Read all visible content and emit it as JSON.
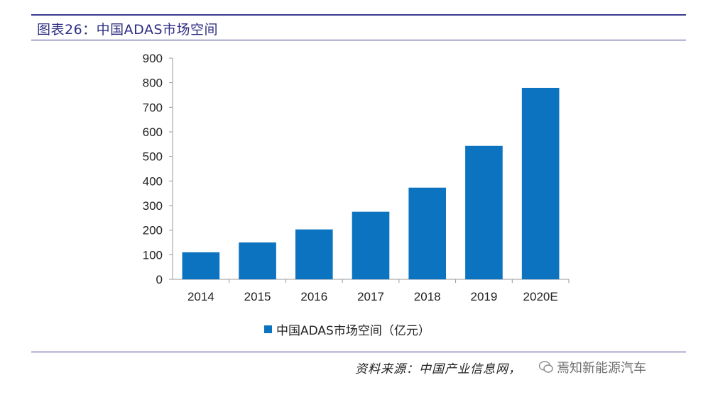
{
  "figure": {
    "title": "图表26：中国ADAS市场空间",
    "source": "资料来源：中国产业信息网，",
    "watermark": "焉知新能源汽车"
  },
  "chart_data": {
    "type": "bar",
    "categories": [
      "2014",
      "2015",
      "2016",
      "2017",
      "2018",
      "2019",
      "2020E"
    ],
    "series": [
      {
        "name": "中国ADAS市场空间（亿元）",
        "values": [
          110,
          150,
          203,
          275,
          373,
          543,
          779
        ]
      }
    ],
    "ylim": [
      0,
      900
    ],
    "yticks": [
      0,
      100,
      200,
      300,
      400,
      500,
      600,
      700,
      800,
      900
    ],
    "legend_position": "bottom",
    "grid": false,
    "bar_color": "#0b73c0"
  }
}
